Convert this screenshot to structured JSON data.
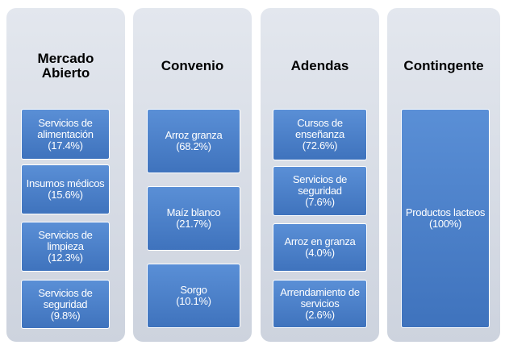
{
  "columns": [
    {
      "title": "Mercado Abierto",
      "items": [
        {
          "label": "Servicios de alimentación",
          "share": "(17.4%)"
        },
        {
          "label": "Insumos médicos",
          "share": "(15.6%)"
        },
        {
          "label": "Servicios de limpieza",
          "share": "(12.3%)"
        },
        {
          "label": "Servicios de seguridad",
          "share": "(9.8%)"
        }
      ]
    },
    {
      "title": "Convenio",
      "items": [
        {
          "label": "Arroz granza",
          "share": "(68.2%)"
        },
        {
          "label": "Maíz blanco",
          "share": "(21.7%)"
        },
        {
          "label": "Sorgo",
          "share": "(10.1%)"
        }
      ]
    },
    {
      "title": "Adendas",
      "items": [
        {
          "label": "Cursos de enseñanza",
          "share": "(72.6%)"
        },
        {
          "label": "Servicios de seguridad",
          "share": "(7.6%)"
        },
        {
          "label": "Arroz en granza",
          "share": "(4.0%)"
        },
        {
          "label": "Arrendamiento de servicios",
          "share": "(2.6%)"
        }
      ]
    },
    {
      "title": "Contingente",
      "items": [
        {
          "label": "Productos lacteos",
          "share": "(100%)"
        }
      ]
    }
  ]
}
